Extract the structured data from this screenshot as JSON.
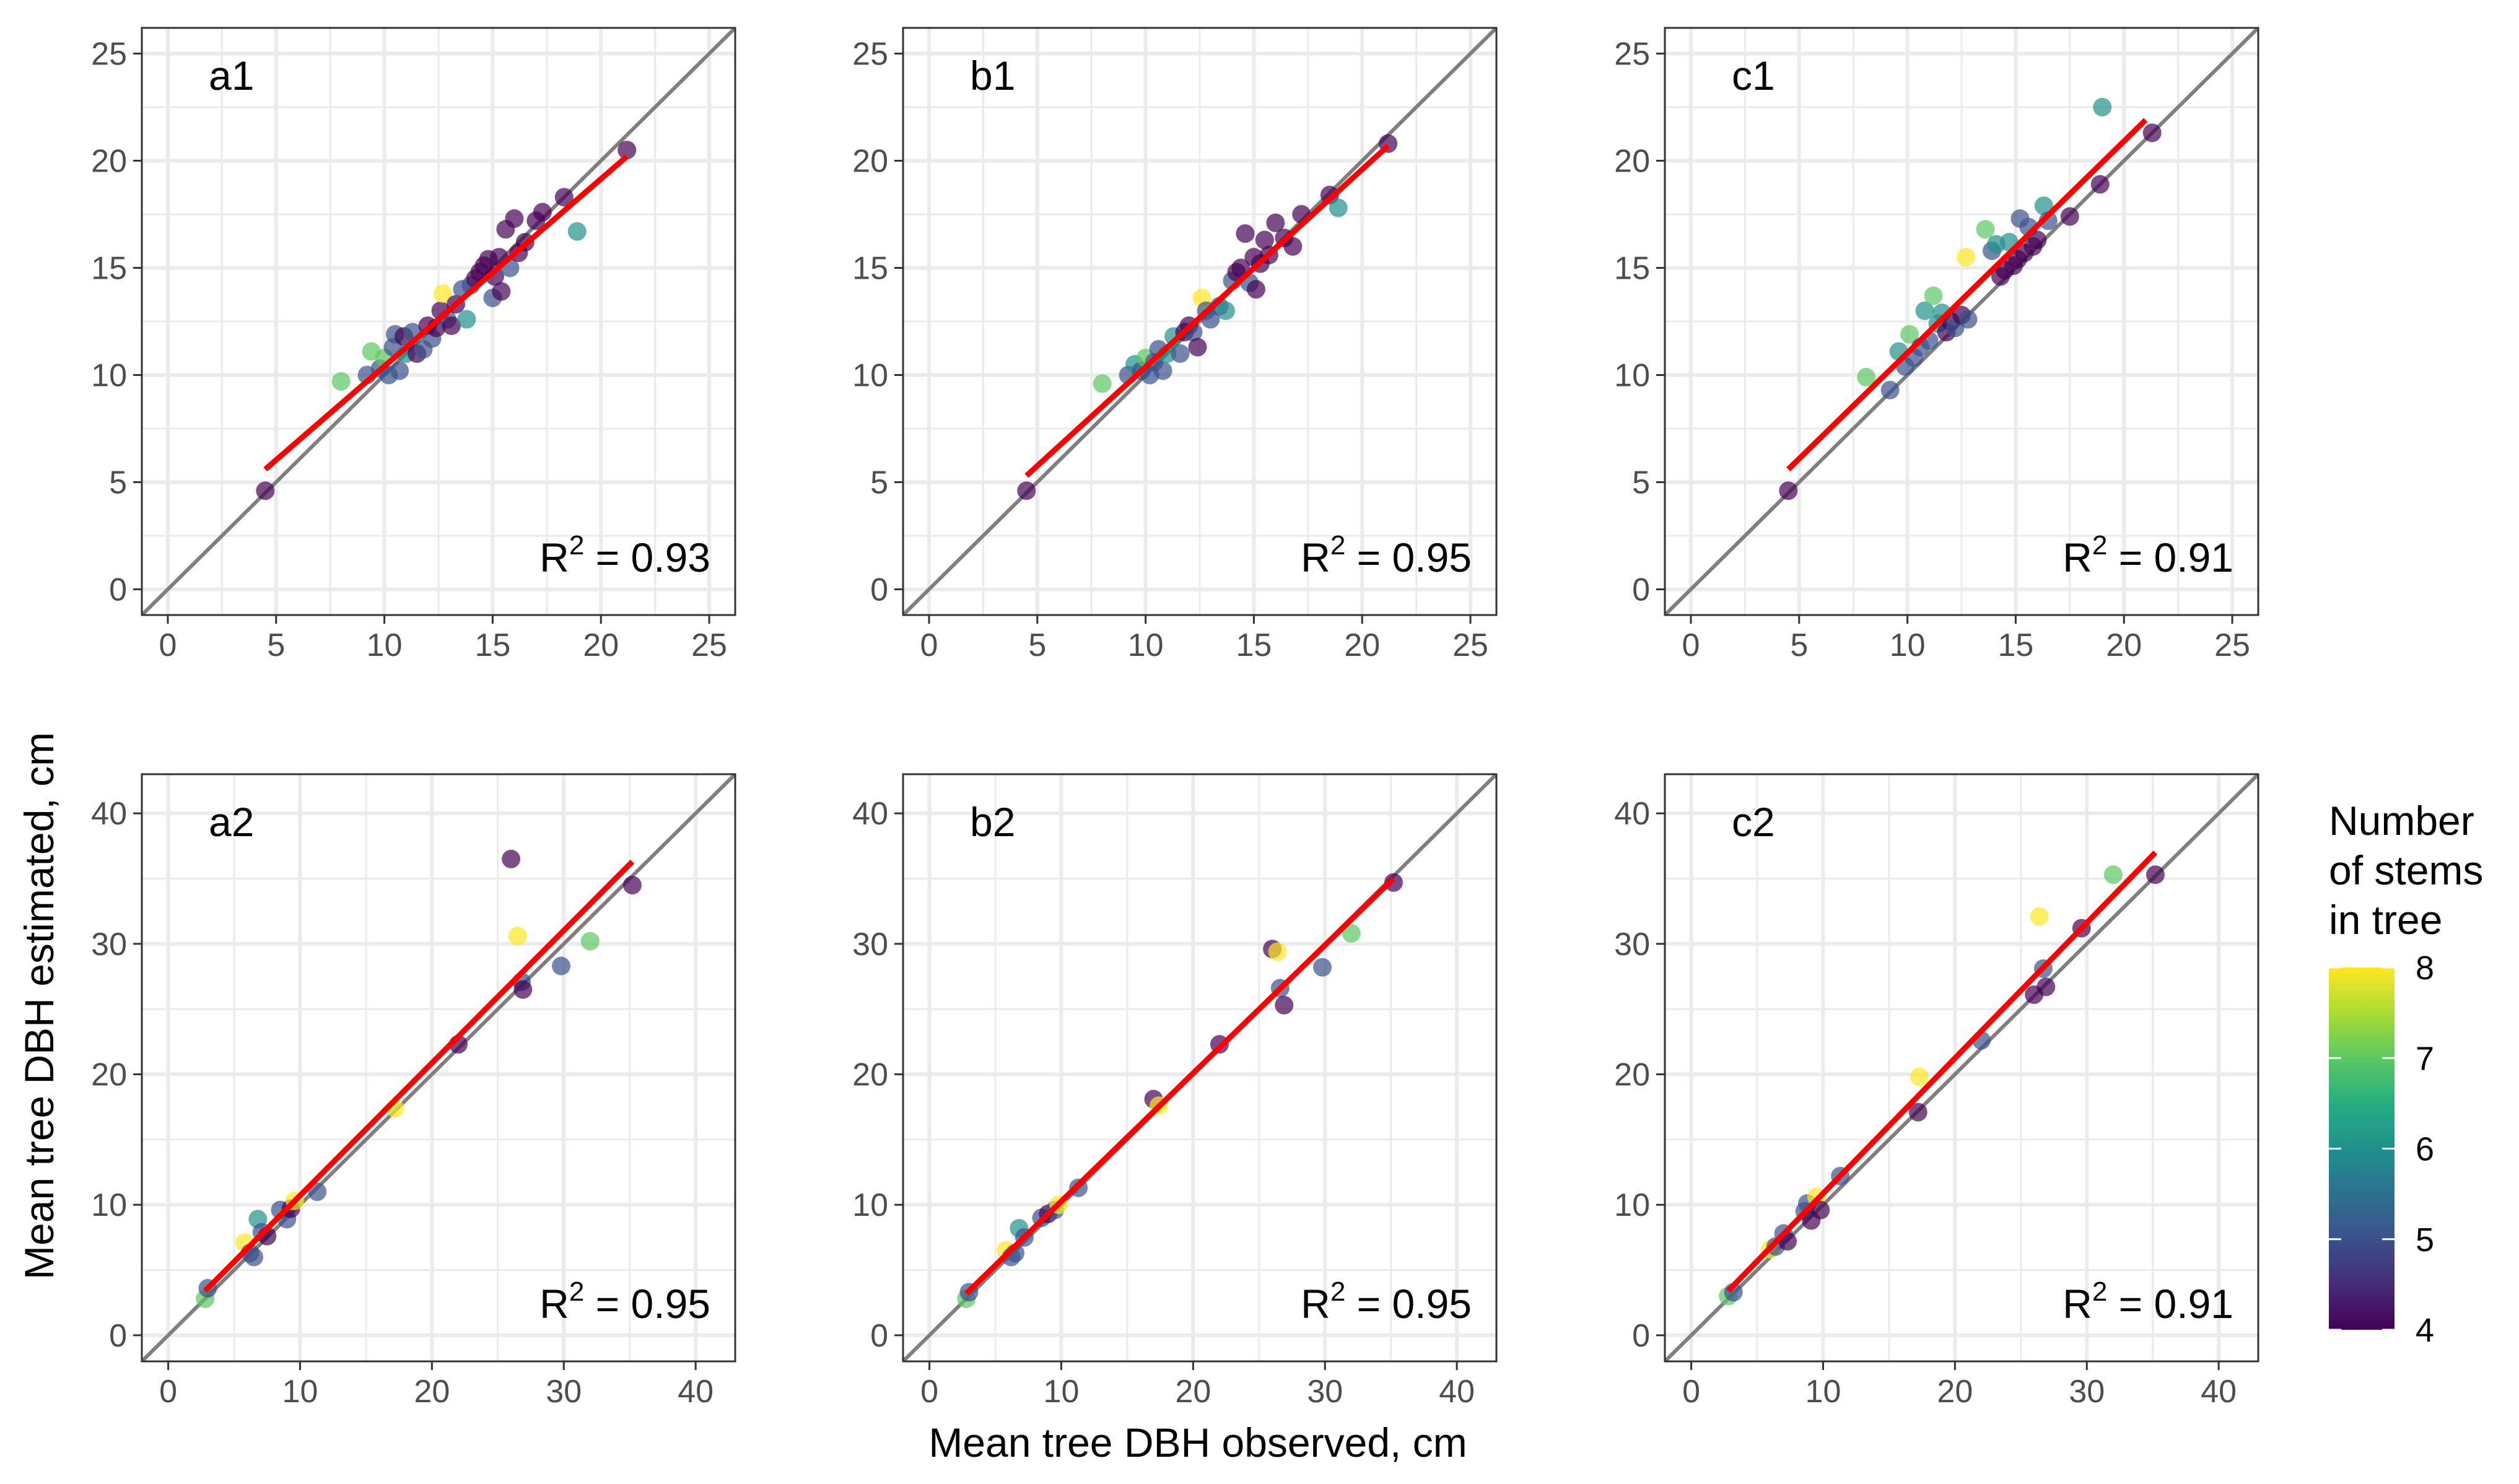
{
  "figure": {
    "xlabel": "Mean tree DBH observed, cm",
    "ylabel": "Mean tree DBH estimated, cm"
  },
  "legend": {
    "title_lines": [
      "Number",
      "of stems",
      "in tree"
    ],
    "ticks": [
      4,
      5,
      6,
      7,
      8
    ],
    "range": [
      4,
      8
    ],
    "colormap": "viridis"
  },
  "colors": {
    "identity_line": "#7f7f7f",
    "fit_line": "#ff0000",
    "grid": "#ebebeb",
    "panel_border": "#333333"
  },
  "chart_data": [
    {
      "type": "scatter",
      "id": "a1",
      "label": "a1",
      "r2": "0.93",
      "xlim": [
        -1.2,
        26.2
      ],
      "ylim": [
        -1.2,
        26.2
      ],
      "ticks": [
        0,
        5,
        10,
        15,
        20,
        25
      ],
      "fit": [
        [
          4.5,
          5.6
        ],
        [
          21.2,
          20.2
        ]
      ],
      "points": [
        [
          4.5,
          4.6,
          4
        ],
        [
          8.0,
          9.7,
          7
        ],
        [
          9.2,
          10.0,
          5
        ],
        [
          9.4,
          11.1,
          7
        ],
        [
          9.8,
          10.3,
          5
        ],
        [
          10.0,
          10.8,
          7
        ],
        [
          10.2,
          10.0,
          5
        ],
        [
          10.4,
          11.3,
          5
        ],
        [
          10.5,
          11.9,
          5
        ],
        [
          10.7,
          10.2,
          5
        ],
        [
          10.9,
          11.8,
          4
        ],
        [
          11.0,
          11.0,
          6
        ],
        [
          11.3,
          12.0,
          5
        ],
        [
          11.5,
          11.0,
          4
        ],
        [
          11.8,
          11.2,
          5
        ],
        [
          12.0,
          12.3,
          4
        ],
        [
          12.2,
          11.7,
          5
        ],
        [
          12.4,
          12.2,
          4
        ],
        [
          12.6,
          13.0,
          4
        ],
        [
          12.7,
          13.8,
          8
        ],
        [
          12.9,
          12.6,
          5
        ],
        [
          13.1,
          12.3,
          4
        ],
        [
          13.3,
          13.3,
          4
        ],
        [
          13.6,
          14.0,
          5
        ],
        [
          13.8,
          12.6,
          6
        ],
        [
          14.0,
          14.2,
          5
        ],
        [
          14.2,
          14.5,
          4
        ],
        [
          14.4,
          14.8,
          4
        ],
        [
          14.6,
          15.1,
          4
        ],
        [
          14.8,
          15.4,
          4
        ],
        [
          15.0,
          13.6,
          5
        ],
        [
          15.1,
          14.6,
          4
        ],
        [
          15.3,
          15.5,
          4
        ],
        [
          15.4,
          13.9,
          4
        ],
        [
          15.6,
          16.8,
          4
        ],
        [
          15.8,
          15.0,
          5
        ],
        [
          16.0,
          17.3,
          4
        ],
        [
          16.2,
          15.7,
          4
        ],
        [
          16.5,
          16.2,
          4
        ],
        [
          17.0,
          17.2,
          4
        ],
        [
          17.3,
          17.6,
          4
        ],
        [
          18.3,
          18.3,
          4
        ],
        [
          18.9,
          16.7,
          6
        ],
        [
          21.2,
          20.5,
          4
        ]
      ]
    },
    {
      "type": "scatter",
      "id": "b1",
      "label": "b1",
      "r2": "0.95",
      "xlim": [
        -1.2,
        26.2
      ],
      "ylim": [
        -1.2,
        26.2
      ],
      "ticks": [
        0,
        5,
        10,
        15,
        20,
        25
      ],
      "fit": [
        [
          4.5,
          5.3
        ],
        [
          21.2,
          20.7
        ]
      ],
      "points": [
        [
          4.5,
          4.6,
          4
        ],
        [
          8.0,
          9.6,
          7
        ],
        [
          9.2,
          10.0,
          5
        ],
        [
          9.5,
          10.5,
          6
        ],
        [
          9.8,
          10.2,
          5
        ],
        [
          10.0,
          10.8,
          7
        ],
        [
          10.2,
          10.0,
          5
        ],
        [
          10.4,
          10.6,
          5
        ],
        [
          10.6,
          11.2,
          5
        ],
        [
          10.8,
          10.2,
          5
        ],
        [
          11.0,
          11.0,
          6
        ],
        [
          11.3,
          11.8,
          6
        ],
        [
          11.6,
          11.0,
          5
        ],
        [
          11.8,
          12.0,
          4
        ],
        [
          12.0,
          12.3,
          4
        ],
        [
          12.2,
          12.0,
          5
        ],
        [
          12.4,
          11.3,
          4
        ],
        [
          12.6,
          13.6,
          8
        ],
        [
          12.8,
          13.0,
          5
        ],
        [
          13.0,
          12.6,
          5
        ],
        [
          13.4,
          13.2,
          5
        ],
        [
          13.7,
          13.0,
          6
        ],
        [
          14.0,
          14.4,
          5
        ],
        [
          14.2,
          14.8,
          4
        ],
        [
          14.4,
          15.0,
          4
        ],
        [
          14.6,
          16.6,
          4
        ],
        [
          14.8,
          14.3,
          5
        ],
        [
          15.0,
          15.5,
          4
        ],
        [
          15.1,
          14.0,
          4
        ],
        [
          15.3,
          15.2,
          4
        ],
        [
          15.5,
          16.3,
          4
        ],
        [
          15.7,
          15.6,
          4
        ],
        [
          16.0,
          17.1,
          4
        ],
        [
          16.4,
          16.4,
          4
        ],
        [
          16.8,
          16.0,
          4
        ],
        [
          17.2,
          17.5,
          4
        ],
        [
          18.5,
          18.4,
          4
        ],
        [
          18.9,
          17.8,
          6
        ],
        [
          21.2,
          20.8,
          4
        ]
      ]
    },
    {
      "type": "scatter",
      "id": "c1",
      "label": "c1",
      "r2": "0.91",
      "xlim": [
        -1.2,
        26.2
      ],
      "ylim": [
        -1.2,
        26.2
      ],
      "ticks": [
        0,
        5,
        10,
        15,
        20,
        25
      ],
      "fit": [
        [
          4.5,
          5.6
        ],
        [
          21.0,
          21.9
        ]
      ],
      "points": [
        [
          4.5,
          4.6,
          4
        ],
        [
          8.1,
          9.9,
          7
        ],
        [
          9.2,
          9.3,
          5
        ],
        [
          9.6,
          11.1,
          6
        ],
        [
          9.9,
          10.4,
          5
        ],
        [
          10.1,
          11.9,
          7
        ],
        [
          10.3,
          10.8,
          5
        ],
        [
          10.6,
          11.3,
          5
        ],
        [
          10.8,
          13.0,
          6
        ],
        [
          11.0,
          11.6,
          5
        ],
        [
          11.2,
          13.7,
          7
        ],
        [
          11.4,
          12.4,
          6
        ],
        [
          11.6,
          12.9,
          6
        ],
        [
          11.8,
          12.0,
          4
        ],
        [
          12.0,
          12.5,
          4
        ],
        [
          12.2,
          12.2,
          5
        ],
        [
          12.5,
          12.8,
          4
        ],
        [
          12.7,
          15.5,
          8
        ],
        [
          12.8,
          12.6,
          5
        ],
        [
          13.6,
          16.8,
          7
        ],
        [
          13.9,
          15.8,
          5
        ],
        [
          14.1,
          16.1,
          6
        ],
        [
          14.3,
          14.6,
          4
        ],
        [
          14.5,
          14.9,
          4
        ],
        [
          14.7,
          16.2,
          6
        ],
        [
          14.9,
          15.1,
          4
        ],
        [
          15.1,
          15.4,
          4
        ],
        [
          15.2,
          17.3,
          5
        ],
        [
          15.4,
          15.7,
          4
        ],
        [
          15.6,
          16.9,
          5
        ],
        [
          15.8,
          16.0,
          4
        ],
        [
          16.0,
          16.3,
          4
        ],
        [
          16.3,
          17.9,
          6
        ],
        [
          16.5,
          17.2,
          5
        ],
        [
          17.5,
          17.4,
          4
        ],
        [
          18.9,
          18.9,
          4
        ],
        [
          19.0,
          22.5,
          6
        ],
        [
          21.3,
          21.3,
          4
        ]
      ]
    },
    {
      "type": "scatter",
      "id": "a2",
      "label": "a2",
      "r2": "0.95",
      "xlim": [
        -2.0,
        43.0
      ],
      "ylim": [
        -2.0,
        43.0
      ],
      "ticks": [
        0,
        10,
        20,
        30,
        40
      ],
      "fit": [
        [
          2.8,
          3.4
        ],
        [
          35.2,
          36.3
        ]
      ],
      "points": [
        [
          2.8,
          2.8,
          7
        ],
        [
          3.0,
          3.6,
          5
        ],
        [
          5.8,
          7.1,
          8
        ],
        [
          6.2,
          6.3,
          5
        ],
        [
          6.5,
          6.0,
          5
        ],
        [
          6.8,
          8.9,
          6
        ],
        [
          7.1,
          7.9,
          5
        ],
        [
          7.5,
          7.6,
          4
        ],
        [
          8.5,
          9.6,
          5
        ],
        [
          9.0,
          8.9,
          5
        ],
        [
          9.3,
          9.7,
          4
        ],
        [
          9.6,
          10.3,
          8
        ],
        [
          11.3,
          11.0,
          5
        ],
        [
          17.2,
          17.4,
          8
        ],
        [
          22.0,
          22.3,
          4
        ],
        [
          26.0,
          36.5,
          4
        ],
        [
          26.5,
          30.6,
          8
        ],
        [
          26.8,
          27.1,
          5
        ],
        [
          26.9,
          26.5,
          4
        ],
        [
          29.8,
          28.3,
          5
        ],
        [
          32.0,
          30.2,
          7
        ],
        [
          35.2,
          34.5,
          4
        ]
      ]
    },
    {
      "type": "scatter",
      "id": "b2",
      "label": "b2",
      "r2": "0.95",
      "xlim": [
        -2.0,
        43.0
      ],
      "ylim": [
        -2.0,
        43.0
      ],
      "ticks": [
        0,
        10,
        20,
        30,
        40
      ],
      "fit": [
        [
          2.8,
          3.2
        ],
        [
          35.2,
          35.0
        ]
      ],
      "points": [
        [
          2.8,
          2.8,
          7
        ],
        [
          3.0,
          3.3,
          5
        ],
        [
          5.8,
          6.5,
          8
        ],
        [
          6.2,
          6.0,
          5
        ],
        [
          6.5,
          6.3,
          5
        ],
        [
          6.8,
          8.2,
          6
        ],
        [
          7.2,
          7.5,
          5
        ],
        [
          8.5,
          9.0,
          5
        ],
        [
          9.0,
          9.3,
          4
        ],
        [
          9.5,
          9.6,
          5
        ],
        [
          9.8,
          10.0,
          8
        ],
        [
          11.3,
          11.3,
          5
        ],
        [
          17.0,
          18.1,
          4
        ],
        [
          17.4,
          17.6,
          8
        ],
        [
          22.0,
          22.3,
          4
        ],
        [
          26.0,
          29.6,
          4
        ],
        [
          26.4,
          29.4,
          8
        ],
        [
          26.6,
          26.6,
          5
        ],
        [
          26.9,
          25.3,
          4
        ],
        [
          29.8,
          28.2,
          5
        ],
        [
          32.0,
          30.8,
          7
        ],
        [
          35.2,
          34.7,
          4
        ]
      ]
    },
    {
      "type": "scatter",
      "id": "c2",
      "label": "c2",
      "r2": "0.91",
      "xlim": [
        -2.0,
        43.0
      ],
      "ylim": [
        -2.0,
        43.0
      ],
      "ticks": [
        0,
        10,
        20,
        30,
        40
      ],
      "fit": [
        [
          2.8,
          3.4
        ],
        [
          35.2,
          37.0
        ]
      ],
      "points": [
        [
          2.8,
          3.0,
          7
        ],
        [
          3.2,
          3.3,
          5
        ],
        [
          6.0,
          6.6,
          8
        ],
        [
          6.4,
          6.8,
          5
        ],
        [
          7.0,
          7.8,
          5
        ],
        [
          7.3,
          7.2,
          4
        ],
        [
          8.6,
          9.5,
          5
        ],
        [
          8.8,
          10.1,
          5
        ],
        [
          9.1,
          8.8,
          4
        ],
        [
          9.5,
          10.6,
          8
        ],
        [
          9.8,
          9.6,
          4
        ],
        [
          11.3,
          12.2,
          5
        ],
        [
          17.2,
          17.1,
          4
        ],
        [
          17.3,
          19.8,
          8
        ],
        [
          22.0,
          22.6,
          5
        ],
        [
          26.0,
          26.1,
          4
        ],
        [
          26.4,
          32.1,
          8
        ],
        [
          26.7,
          28.1,
          5
        ],
        [
          26.9,
          26.7,
          4
        ],
        [
          29.6,
          31.2,
          4
        ],
        [
          32.0,
          35.3,
          7
        ],
        [
          35.2,
          35.3,
          4
        ]
      ]
    }
  ]
}
